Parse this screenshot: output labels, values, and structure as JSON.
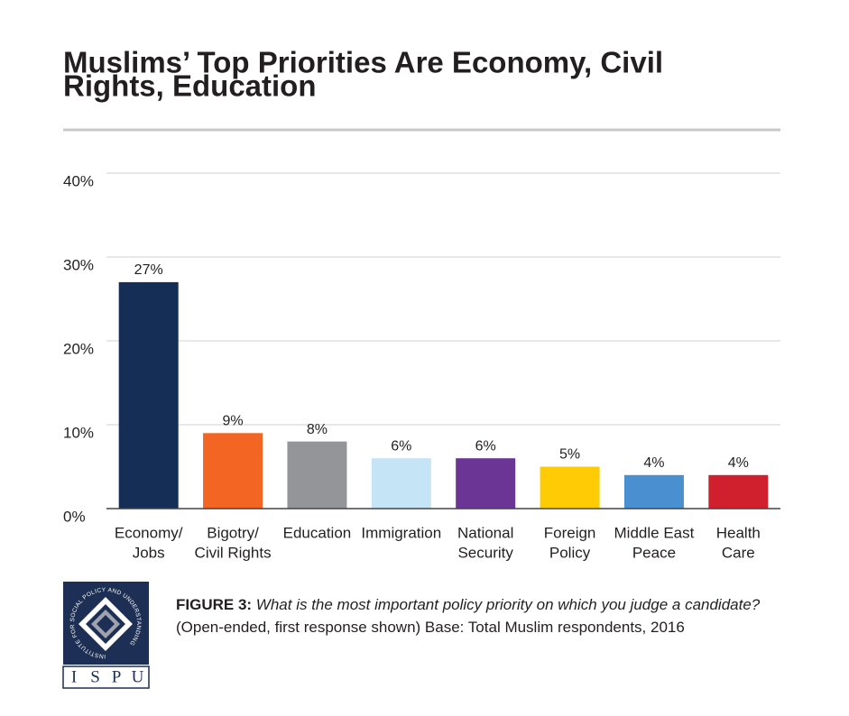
{
  "chart_data": {
    "type": "bar",
    "title_lines": [
      "Muslims’ Top Priorities Are Economy, Civil",
      "Rights, Education"
    ],
    "categories": [
      [
        "Economy/",
        "Jobs"
      ],
      [
        "Bigotry/",
        "Civil Rights"
      ],
      [
        "Education"
      ],
      [
        "Immigration"
      ],
      [
        "National",
        "Security"
      ],
      [
        "Foreign",
        "Policy"
      ],
      [
        "Middle East",
        "Peace"
      ],
      [
        "Health",
        "Care"
      ]
    ],
    "values": [
      27,
      9,
      8,
      6,
      6,
      5,
      4,
      4
    ],
    "value_labels": [
      "27%",
      "9%",
      "8%",
      "6%",
      "6%",
      "5%",
      "4%",
      "4%"
    ],
    "colors": [
      "#152e55",
      "#f26522",
      "#939598",
      "#c5e5f7",
      "#6a3594",
      "#ffcb05",
      "#4a8fd0",
      "#d0202e"
    ],
    "ylim": [
      0,
      40
    ],
    "yticks": [
      {
        "value": 0,
        "label": "0%"
      },
      {
        "value": 10,
        "label": "10%"
      },
      {
        "value": 20,
        "label": "20%"
      },
      {
        "value": 30,
        "label": "30%"
      },
      {
        "value": 40,
        "label": "40%"
      }
    ],
    "grid": true,
    "caption": {
      "label": "FIGURE 3:",
      "question": "What is the most important policy priority on which you judge a candidate?",
      "note": "(Open-ended, first response shown) Base: Total Muslim respondents, 2016"
    }
  },
  "logo": {
    "circle_text": "INSTITUTE FOR SOCIAL POLICY AND UNDERSTANDING",
    "letters": [
      "I",
      "S",
      "P",
      "U"
    ]
  }
}
